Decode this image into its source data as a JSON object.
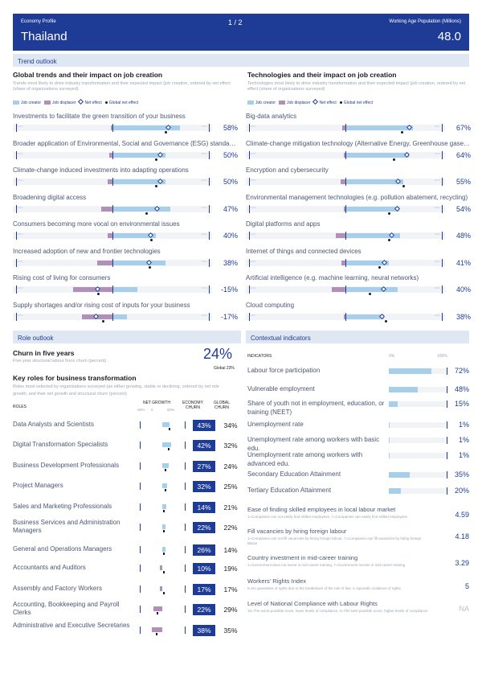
{
  "header": {
    "economy_label": "Economy Profile",
    "page": "1 / 2",
    "population_label": "Working Age Population (Millions)",
    "country": "Thailand",
    "population": "48.0"
  },
  "trend_outlook": {
    "section_title": "Trend outlook",
    "left": {
      "title": "Global trends and their impact on job creation",
      "subtitle": "Trends most likely to drive industry transformation and their expected impact (job creation, ordered by net effect (share of organizations surveyed)",
      "legend": {
        "creator": "Job creator",
        "displacer": "Job displacer",
        "net": "Net effect",
        "global": "Global net effect"
      },
      "items": [
        {
          "label": "Investments to facilitate the green transition of your business",
          "value": "58%",
          "tick_l": "-100%",
          "tick_r": "100%",
          "creator": 0.7,
          "displacer": 0.02,
          "net": 0.58,
          "global": 0.55
        },
        {
          "label": "Broader application of Environmental, Social and Governance (ESG) standards",
          "value": "50%",
          "tick_l": "-100%",
          "tick_r": "100%",
          "creator": 0.55,
          "displacer": 0.03,
          "net": 0.5,
          "global": 0.45
        },
        {
          "label": "Climate-change induced investments into adapting operations",
          "value": "50%",
          "tick_l": "-100%",
          "tick_r": "100%",
          "creator": 0.55,
          "displacer": 0.05,
          "net": 0.5,
          "global": 0.45
        },
        {
          "label": "Broadening digital access",
          "value": "47%",
          "tick_l": "-100%",
          "tick_r": "100%",
          "creator": 0.6,
          "displacer": 0.12,
          "net": 0.47,
          "global": 0.35
        },
        {
          "label": "Consumers becoming more vocal on environmental issues",
          "value": "40%",
          "tick_l": "-100%",
          "tick_r": "100%",
          "creator": 0.45,
          "displacer": 0.05,
          "net": 0.4,
          "global": 0.4
        },
        {
          "label": "Increased adoption of new and frontier technologies",
          "value": "38%",
          "tick_l": "-100%",
          "tick_r": "100%",
          "creator": 0.55,
          "displacer": 0.16,
          "net": 0.38,
          "global": 0.38
        },
        {
          "label": "Rising cost of living for consumers",
          "value": "-15%",
          "tick_l": "-100%",
          "tick_r": "100%",
          "creator": 0.26,
          "displacer": 0.41,
          "net": -0.15,
          "global": -0.15
        },
        {
          "label": "Supply shortages and/or rising cost of inputs for your business",
          "value": "-17%",
          "tick_l": "-100%",
          "tick_r": "100%",
          "creator": 0.15,
          "displacer": 0.32,
          "net": -0.17,
          "global": -0.1
        }
      ]
    },
    "right": {
      "title": "Technologies and their impact on job creation",
      "subtitle": "Technologies most likely to drive industry transformation and their expected impact (job creation, ordered by net effect (share of organizations surveyed)",
      "legend": {
        "creator": "Job creator",
        "displacer": "Job displacer",
        "net": "Net effect",
        "global": "Global net effect"
      },
      "items": [
        {
          "label": "Big-data analytics",
          "value": "67%",
          "tick_l": "-100%",
          "tick_r": "100%",
          "creator": 0.7,
          "displacer": 0.03,
          "net": 0.67,
          "global": 0.58
        },
        {
          "label": "Climate-change mitigation technology (Alternative Energy, Greenhouse gases…",
          "value": "64%",
          "tick_l": "-100%",
          "tick_r": "100%",
          "creator": 0.66,
          "displacer": 0.02,
          "net": 0.64,
          "global": 0.5
        },
        {
          "label": "Encryption and cybersecurity",
          "value": "55%",
          "tick_l": "-100%",
          "tick_r": "100%",
          "creator": 0.6,
          "displacer": 0.05,
          "net": 0.55,
          "global": 0.6
        },
        {
          "label": "Environmental management technologies (e.g. pollution abatement, recycling)",
          "value": "54%",
          "tick_l": "-100%",
          "tick_r": "100%",
          "creator": 0.56,
          "displacer": 0.02,
          "net": 0.54,
          "global": 0.45
        },
        {
          "label": "Digital platforms and apps",
          "value": "48%",
          "tick_l": "-100%",
          "tick_r": "100%",
          "creator": 0.57,
          "displacer": 0.1,
          "net": 0.48,
          "global": 0.45
        },
        {
          "label": "Internet of things and connected devices",
          "value": "41%",
          "tick_l": "-100%",
          "tick_r": "100%",
          "creator": 0.45,
          "displacer": 0.04,
          "net": 0.41,
          "global": 0.35
        },
        {
          "label": "Artificial intelligence (e.g. machine learning, neural networks)",
          "value": "40%",
          "tick_l": "-100%",
          "tick_r": "100%",
          "creator": 0.54,
          "displacer": 0.14,
          "net": 0.4,
          "global": 0.25
        },
        {
          "label": "Cloud computing",
          "value": "38%",
          "tick_l": "-100%",
          "tick_r": "100%",
          "creator": 0.4,
          "displacer": 0.02,
          "net": 0.38,
          "global": 0.42
        }
      ]
    }
  },
  "role_outlook": {
    "section_title": "Role outlook",
    "churn_title": "Churn in five years",
    "churn_subtitle": "Five year structural labour force churn (percent)",
    "churn_value": "24%",
    "churn_global": "Global 23%",
    "key_roles_title": "Key roles for business transformation",
    "key_roles_subtitle": "Roles most selected by organizations surveyed (as either growing, stable or declining, ordered by net role growth, and their net growth and structural churn (percent)",
    "col_roles": "ROLES",
    "col_net_growth": "NET GROWTH",
    "col_econ_churn": "ECONOMY CHURN",
    "col_global_churn": "GLOBAL CHURN",
    "scale": [
      "-50%",
      "0",
      "50%"
    ],
    "items": [
      {
        "label": "Data Analysts and Scientists",
        "churn": "43%",
        "global_churn": "34%",
        "net_growth": 0.32,
        "global_growth": 0.3
      },
      {
        "label": "Digital Transformation Specialists",
        "churn": "42%",
        "global_churn": "32%",
        "net_growth": 0.4,
        "global_growth": 0.25
      },
      {
        "label": "Business Development Professionals",
        "churn": "27%",
        "global_churn": "24%",
        "net_growth": 0.28,
        "global_growth": 0.12
      },
      {
        "label": "Project Managers",
        "churn": "32%",
        "global_churn": "25%",
        "net_growth": 0.2,
        "global_growth": 0.1
      },
      {
        "label": "Sales and Marketing Professionals",
        "churn": "14%",
        "global_churn": "21%",
        "net_growth": 0.18,
        "global_growth": 0.03
      },
      {
        "label": "Business Services and Administration Managers",
        "churn": "22%",
        "global_churn": "22%",
        "net_growth": 0.16,
        "global_growth": 0.04
      },
      {
        "label": "General and Operations Managers",
        "churn": "26%",
        "global_churn": "14%",
        "net_growth": 0.15,
        "global_growth": 0.02
      },
      {
        "label": "Accountants and Auditors",
        "churn": "10%",
        "global_churn": "19%",
        "net_growth": -0.12,
        "global_growth": 0.02
      },
      {
        "label": "Assembly and Factory Workers",
        "churn": "17%",
        "global_churn": "17%",
        "net_growth": -0.1,
        "global_growth": 0.03
      },
      {
        "label": "Accounting, Bookkeeping and Payroll Clerks",
        "churn": "22%",
        "global_churn": "29%",
        "net_growth": -0.4,
        "global_growth": -0.25
      },
      {
        "label": "Administrative and Executive Secretaries",
        "churn": "38%",
        "global_churn": "35%",
        "net_growth": -0.45,
        "global_growth": -0.28
      }
    ]
  },
  "contextual": {
    "section_title": "Contextual indicators",
    "col_indicators": "INDICATORS",
    "scale": [
      "0%",
      "100%"
    ],
    "items": [
      {
        "label": "Labour force participation",
        "value": "72%",
        "fill": 0.72
      },
      {
        "label": "Vulnerable employment",
        "value": "48%",
        "fill": 0.48
      },
      {
        "label": "Share of youth not in employment, education, or training (NEET)",
        "value": "15%",
        "fill": 0.15
      },
      {
        "label": "Unemployment rate",
        "value": "1%",
        "fill": 0.01
      },
      {
        "label": "Unemployment rate among workers with basic edu.",
        "value": "1%",
        "fill": 0.01
      },
      {
        "label": "Unemployment rate among workers with advanced edu.",
        "value": "1%",
        "fill": 0.01
      },
      {
        "label": "Secondary Education Attainment",
        "value": "35%",
        "fill": 0.35
      },
      {
        "label": "Tertiary Education Attainment",
        "value": "20%",
        "fill": 0.2
      }
    ],
    "indices": [
      {
        "label": "Ease of finding skilled employees in local labour market",
        "sub": "1=Companies can not easily find skilled employees, 7=Companies can easily find skilled employees",
        "value": "4.59"
      },
      {
        "label": "Fill vacancies by hiring foreign labour",
        "sub": "1=Companies can not fill vacancies by hiring foreign labour, 7=Companies can fill vacancies by hiring foreign labour",
        "value": "4.18"
      },
      {
        "label": "Country investment in mid-career training",
        "sub": "1=Government does not invest in mid-career training, 7=Government invests in mid-career training",
        "value": "3.29"
      },
      {
        "label": "Workers' Rights Index",
        "sub": "5=No guarantee of rights due to the breakdown of the rule of law, 1=Sporadic violations of rights",
        "value": "5"
      },
      {
        "label": "Level of National Compliance with Labour Rights",
        "sub": "10=The worst possible score, lower levels of compliance, 0=The best possible score, higher levels of compliance",
        "value": "NA"
      }
    ]
  },
  "colors": {
    "brand": "#1e3c96",
    "creator": "#a8cfe9",
    "displacer": "#b08fb8",
    "band": "#dfe7f3"
  }
}
